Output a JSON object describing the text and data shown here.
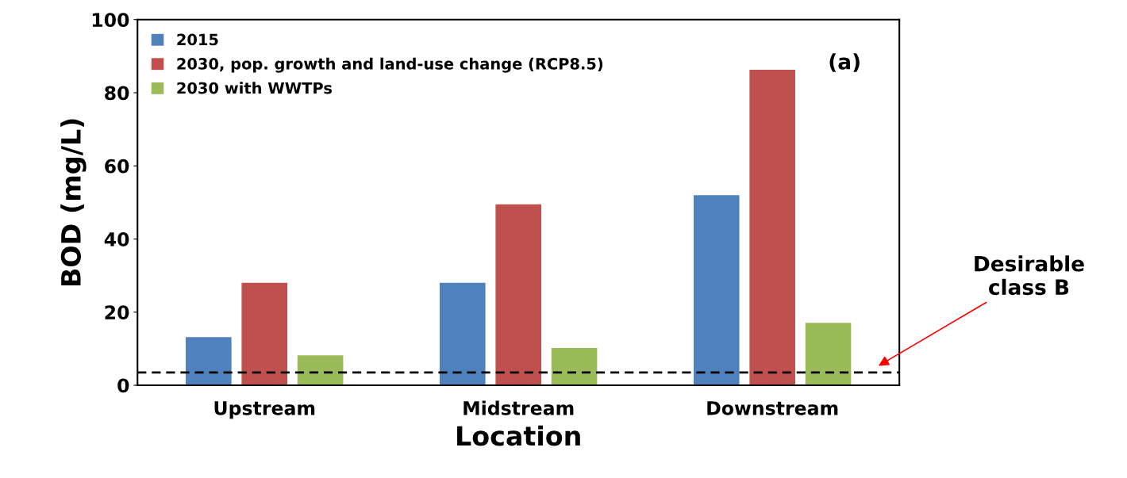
{
  "chart_data": {
    "type": "bar",
    "xlabel": "Location",
    "ylabel": "BOD (mg/L)",
    "categories": [
      "Upstream",
      "Midstream",
      "Downstream"
    ],
    "series": [
      {
        "name": "2015",
        "color": "#4f81bd",
        "values": [
          13.2,
          28,
          52
        ]
      },
      {
        "name": "2030, pop. growth and land-use change (RCP8.5)",
        "color": "#c0504d",
        "values": [
          28,
          49.5,
          86.3
        ]
      },
      {
        "name": "2030 with WWTPs",
        "color": "#9bbb59",
        "values": [
          8.2,
          10.2,
          17.1
        ]
      }
    ],
    "ylim": [
      0,
      100
    ],
    "yticks": [
      0,
      20,
      40,
      60,
      80,
      100
    ],
    "grid": false,
    "legend": "top left",
    "ref_lines": [
      {
        "axis": "y",
        "value": 3.5,
        "color": "#000000",
        "line_style": "dashed"
      }
    ],
    "annotations": [
      "(a)",
      "Desirable\nclass B"
    ]
  }
}
